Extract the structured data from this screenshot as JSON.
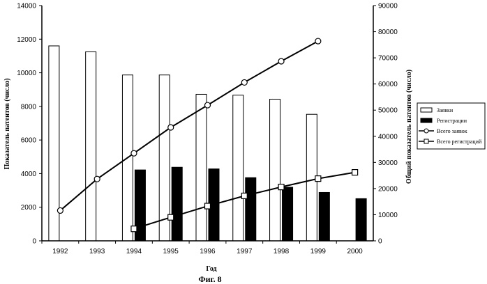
{
  "chart_data": {
    "type": "bar",
    "x_label": "Год",
    "y_left_label": "Показатель патентов (число)",
    "y_right_label": "Общий показатель патентов (число)",
    "caption": "Фиг. 8",
    "categories": [
      "1992",
      "1993",
      "1994",
      "1995",
      "1996",
      "1997",
      "1998",
      "1999",
      "2000"
    ],
    "y_left_range": [
      0,
      14000
    ],
    "y_left_ticks": [
      "0",
      "2000",
      "4000",
      "6000",
      "8000",
      "10000",
      "12000",
      "14000"
    ],
    "y_right_range": [
      0,
      90000
    ],
    "y_right_ticks": [
      "0",
      "10000",
      "20000",
      "30000",
      "40000",
      "50000",
      "60000",
      "70000",
      "80000",
      "90000"
    ],
    "bar_series": [
      {
        "name": "Заявки",
        "color": "#ffffff",
        "values": [
          11600,
          11250,
          9870,
          9870,
          8720,
          8670,
          8430,
          7530,
          null
        ]
      },
      {
        "name": "Регистрации",
        "color": "#000000",
        "values": [
          null,
          null,
          4220,
          4380,
          4280,
          3760,
          3190,
          2880,
          2510
        ]
      }
    ],
    "line_series": [
      {
        "name": "Всего заявок",
        "marker": "circle",
        "axis": "right",
        "values": [
          11600,
          23650,
          33500,
          43400,
          51900,
          60600,
          68700,
          76400,
          null
        ]
      },
      {
        "name": "Всего регистраций",
        "marker": "square",
        "axis": "right",
        "values": [
          null,
          null,
          4600,
          9000,
          13300,
          17200,
          20600,
          23800,
          26200
        ]
      }
    ],
    "legend_position": "right",
    "grid": false
  }
}
